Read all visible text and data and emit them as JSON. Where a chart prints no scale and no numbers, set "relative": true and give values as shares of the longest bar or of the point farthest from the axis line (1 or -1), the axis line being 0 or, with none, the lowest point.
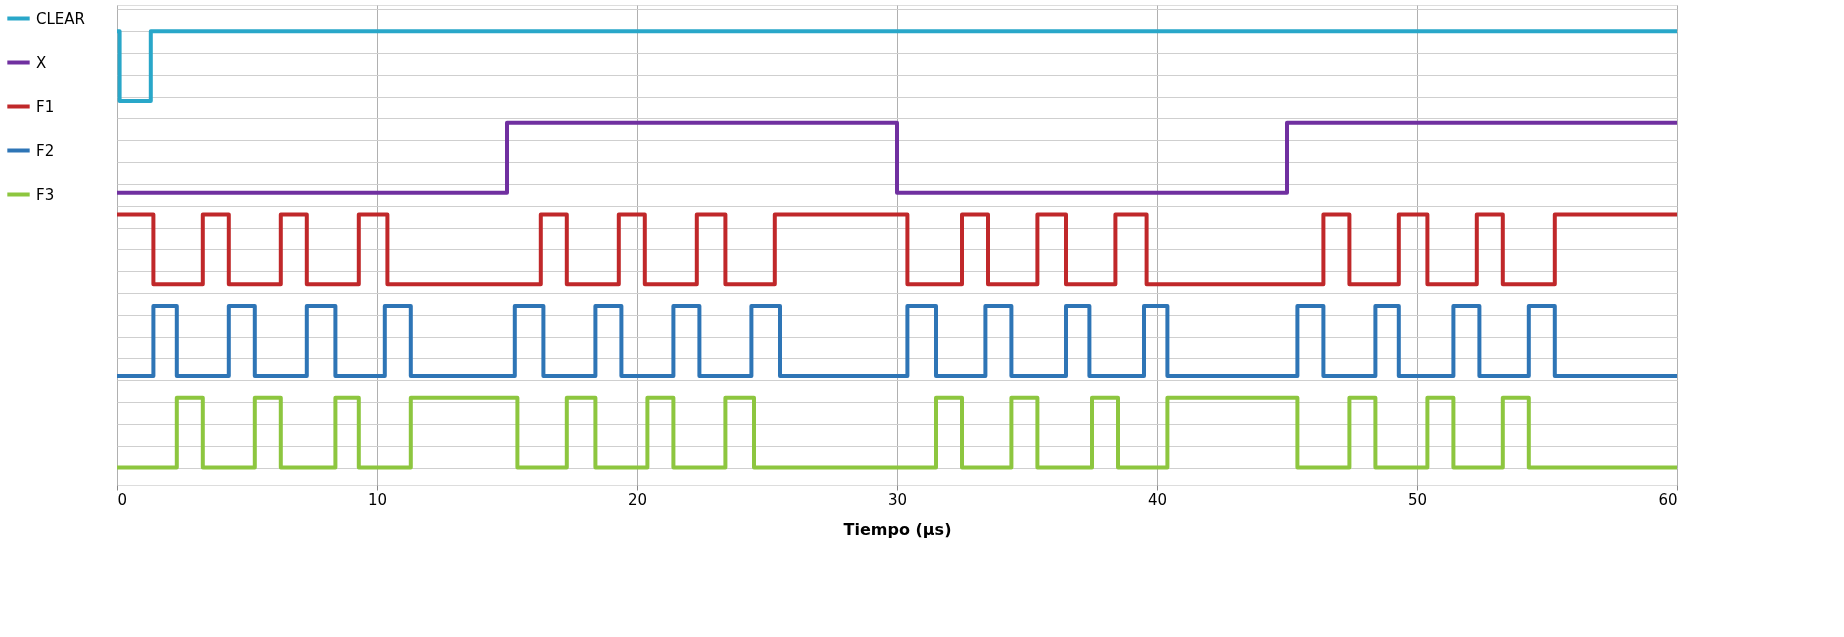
{
  "chart_data": {
    "type": "step",
    "relative": true,
    "xlabel": "Tiempo (µs)",
    "xlim": [
      0,
      60
    ],
    "xticks": [
      0,
      10,
      20,
      30,
      40,
      50,
      60
    ],
    "grid": true,
    "legend": "left",
    "line_style": "solid",
    "marker": "none",
    "series": [
      {
        "name": "CLEAR",
        "color": "#29a7c9",
        "x": [
          0,
          0.1,
          1.3,
          60
        ],
        "values": [
          1,
          0.84,
          1,
          1
        ]
      },
      {
        "name": "X",
        "color": "#7030a0",
        "x": [
          0,
          15,
          30,
          45,
          60
        ],
        "values": [
          0.63,
          0.79,
          0.63,
          0.79,
          0.79
        ]
      },
      {
        "name": "F1",
        "color": "#c0282a",
        "x": [
          0,
          1.4,
          3.3,
          4.3,
          6.3,
          7.3,
          9.3,
          10.4,
          16.3,
          17.3,
          19.3,
          20.3,
          22.3,
          23.4,
          25.3,
          30.4,
          32.5,
          33.5,
          35.4,
          36.5,
          38.4,
          39.6,
          46.4,
          47.4,
          49.3,
          50.4,
          52.3,
          53.3,
          55.3,
          60
        ],
        "values": [
          0.58,
          0.42,
          0.58,
          0.42,
          0.58,
          0.42,
          0.58,
          0.42,
          0.58,
          0.42,
          0.58,
          0.42,
          0.58,
          0.42,
          0.58,
          0.42,
          0.58,
          0.42,
          0.58,
          0.42,
          0.58,
          0.42,
          0.58,
          0.42,
          0.58,
          0.42,
          0.58,
          0.42,
          0.58,
          0.58
        ]
      },
      {
        "name": "F2",
        "color": "#2e75b6",
        "x": [
          0,
          1.4,
          2.3,
          4.3,
          5.3,
          7.3,
          8.4,
          10.3,
          11.3,
          15.3,
          16.4,
          18.4,
          19.4,
          21.4,
          22.4,
          24.4,
          25.5,
          30.4,
          31.5,
          33.4,
          34.4,
          36.5,
          37.4,
          39.5,
          40.4,
          45.4,
          46.4,
          48.4,
          49.3,
          51.4,
          52.4,
          54.3,
          55.3,
          60
        ],
        "values": [
          0.21,
          0.37,
          0.21,
          0.37,
          0.21,
          0.37,
          0.21,
          0.37,
          0.21,
          0.37,
          0.21,
          0.37,
          0.21,
          0.37,
          0.21,
          0.37,
          0.21,
          0.37,
          0.21,
          0.37,
          0.21,
          0.37,
          0.21,
          0.37,
          0.21,
          0.37,
          0.21,
          0.37,
          0.21,
          0.37,
          0.21,
          0.37,
          0.21,
          0.21
        ]
      },
      {
        "name": "F3",
        "color": "#8dc63f",
        "x": [
          0,
          2.3,
          3.3,
          5.3,
          6.3,
          8.4,
          9.3,
          11.3,
          15.4,
          17.3,
          18.4,
          20.4,
          21.4,
          23.4,
          24.5,
          31.5,
          32.5,
          34.4,
          35.4,
          37.5,
          38.5,
          40.4,
          45.4,
          47.4,
          48.4,
          50.4,
          51.4,
          53.3,
          54.3,
          60
        ],
        "values": [
          0,
          0.16,
          0,
          0.16,
          0,
          0.16,
          0,
          0.16,
          0,
          0.16,
          0,
          0.16,
          0,
          0.16,
          0,
          0.16,
          0,
          0.16,
          0,
          0.16,
          0,
          0.16,
          0,
          0.16,
          0,
          0.16,
          0,
          0.16,
          0,
          0
        ]
      }
    ]
  }
}
